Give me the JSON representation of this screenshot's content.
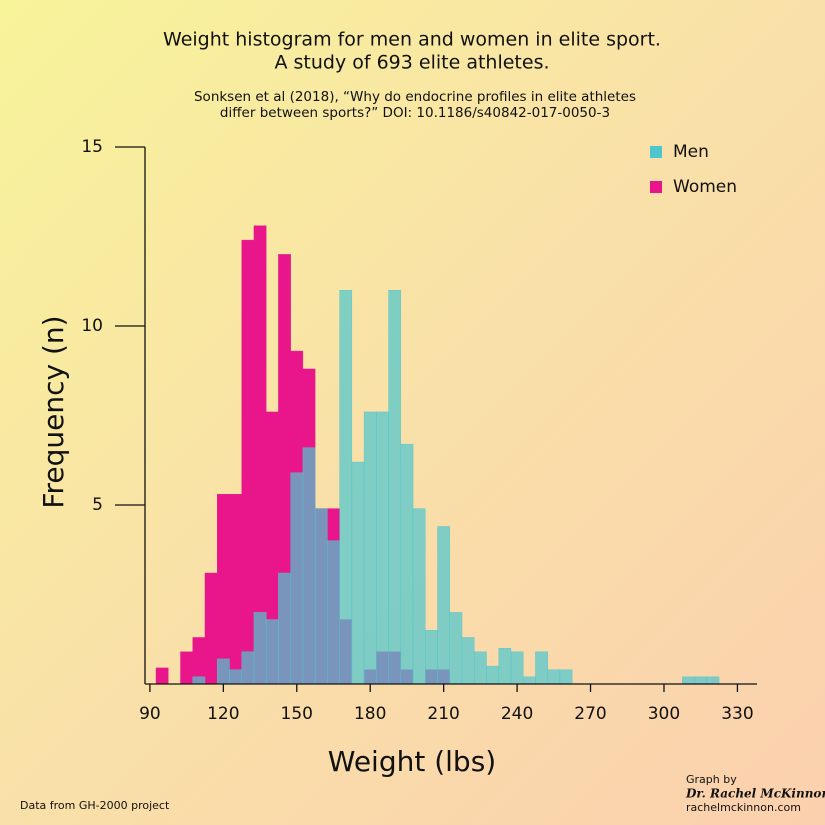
{
  "chart_data": {
    "type": "histogram",
    "title": [
      "Weight histogram for men and women in elite sport.",
      "A study of 693 elite athletes."
    ],
    "subtitle": [
      "Sonksen et al (2018), “Why do endocrine profiles in elite athletes",
      "differ between sports?” DOI: 10.1186/s40842-017-0050-3"
    ],
    "x_label": "Weight (lbs)",
    "y_label": "Frequency (n)",
    "source": "Data from GH-2000 project",
    "credit": [
      "Graph by",
      "Dr. Rachel McKinnon",
      "rachelmckinnon.com"
    ],
    "bins": [
      92.5,
      97.5,
      102.5,
      107.5,
      112.5,
      117.5,
      122.5,
      127.5,
      132.5,
      137.5,
      142.5,
      147.5,
      152.5,
      157.5,
      162.5,
      167.5,
      172.5,
      177.5,
      182.5,
      187.5,
      192.5,
      197.5,
      202.5,
      207.5,
      212.5,
      217.5,
      222.5,
      227.5,
      232.5,
      237.5,
      242.5,
      247.5,
      252.5,
      257.5,
      262.5,
      267.5,
      272.5,
      277.5,
      282.5,
      287.5,
      292.5,
      297.5,
      302.5,
      307.5,
      312.5,
      317.5,
      322.5
    ],
    "series": [
      {
        "name": "Women",
        "color": "#e8168a",
        "values": [
          0.45,
          0,
          0.9,
          1.3,
          3.1,
          5.3,
          5.3,
          12.4,
          12.8,
          7.6,
          12.0,
          9.3,
          8.8,
          4.9,
          4.9,
          1.8,
          0,
          0.4,
          0.9,
          0.9,
          0.4,
          0,
          0.4,
          0.4,
          0,
          0,
          0,
          0,
          0,
          0,
          0,
          0,
          0,
          0,
          0,
          0,
          0,
          0,
          0,
          0,
          0,
          0,
          0,
          0,
          0,
          0
        ]
      },
      {
        "name": "Men",
        "color": "#4fc6cf",
        "values": [
          0,
          0,
          0,
          0.2,
          0,
          0.7,
          0.4,
          0.9,
          2.0,
          1.8,
          3.1,
          5.9,
          6.6,
          4.9,
          4.0,
          11.0,
          6.2,
          7.6,
          7.6,
          11.0,
          6.7,
          4.9,
          1.5,
          4.4,
          2.0,
          1.3,
          0.9,
          0.5,
          1.0,
          0.9,
          0.2,
          0.9,
          0.4,
          0.4,
          0,
          0,
          0,
          0,
          0,
          0,
          0,
          0,
          0,
          0.2,
          0.2,
          0.2
        ]
      }
    ],
    "legend_order": [
      1,
      0
    ],
    "xlim": [
      88,
      338
    ],
    "ylim": [
      0,
      15
    ],
    "xticks": [
      90,
      120,
      150,
      180,
      210,
      240,
      270,
      300,
      330
    ],
    "yticks": [
      5,
      10,
      15
    ]
  }
}
